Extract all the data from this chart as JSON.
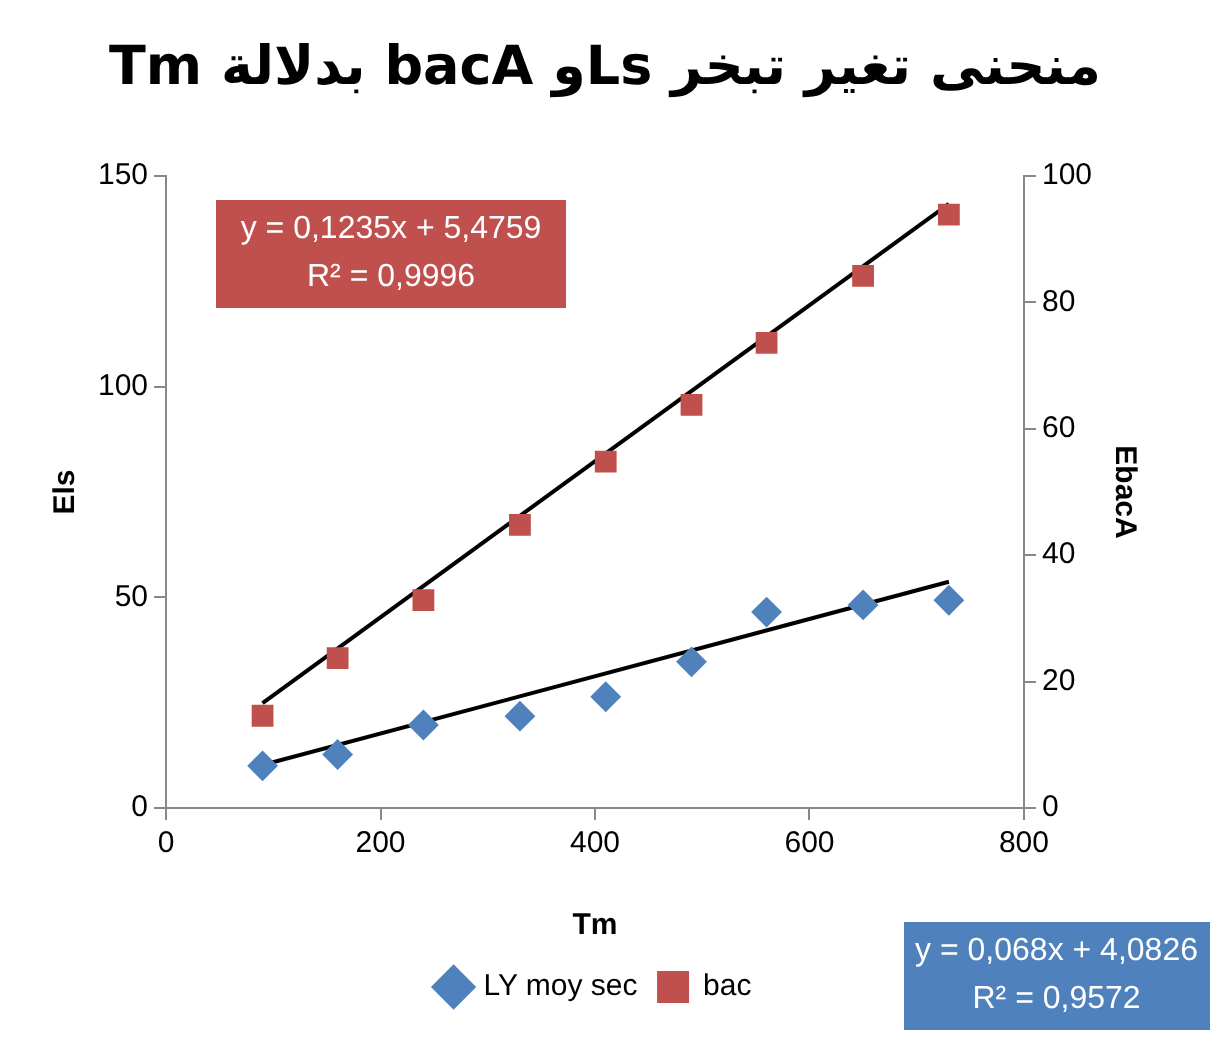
{
  "chart_data": {
    "type": "scatter",
    "title": "منحنى تغير تبخر Lsو bacA بدلالة Tm",
    "xlabel": "Tm",
    "ylabel": "Els",
    "y2label": "EbacA",
    "xlim": [
      0,
      800
    ],
    "xticks": [
      0,
      200,
      400,
      600,
      800
    ],
    "ylim": [
      0,
      150
    ],
    "yticks": [
      0,
      50,
      100,
      150
    ],
    "y2lim": [
      0,
      100
    ],
    "y2ticks": [
      0,
      20,
      40,
      60,
      80,
      100
    ],
    "grid": false,
    "legend": "bottom",
    "series": [
      {
        "name": "LY moy sec",
        "marker": "diamond",
        "color": "#4f81bd",
        "x": [
          90,
          160,
          240,
          330,
          410,
          490,
          560,
          650,
          730
        ],
        "values": [
          10.0,
          12.7,
          19.7,
          21.8,
          26.4,
          34.7,
          46.5,
          48.2,
          49.3
        ]
      },
      {
        "name": "bac",
        "marker": "square",
        "axis": "y2",
        "color": "#c0504d",
        "x": [
          90,
          160,
          240,
          330,
          410,
          490,
          560,
          650,
          730
        ],
        "values": [
          14.6,
          23.7,
          32.9,
          44.8,
          54.8,
          63.8,
          73.6,
          84.2,
          93.9
        ]
      },
      {
        "type": "line",
        "marker": "none",
        "color": "#000000",
        "x": [
          90,
          730
        ],
        "values": [
          10.2,
          53.7
        ]
      },
      {
        "type": "line",
        "marker": "none",
        "axis": "y2",
        "color": "#000000",
        "x": [
          90,
          730
        ],
        "values": [
          16.6,
          95.6
        ]
      }
    ],
    "annotations": [
      "y = 0,1235x + 5,4759",
      "R² = 0,9996",
      "y = 0,068x + 4,0826",
      "R² = 0,9572"
    ]
  }
}
